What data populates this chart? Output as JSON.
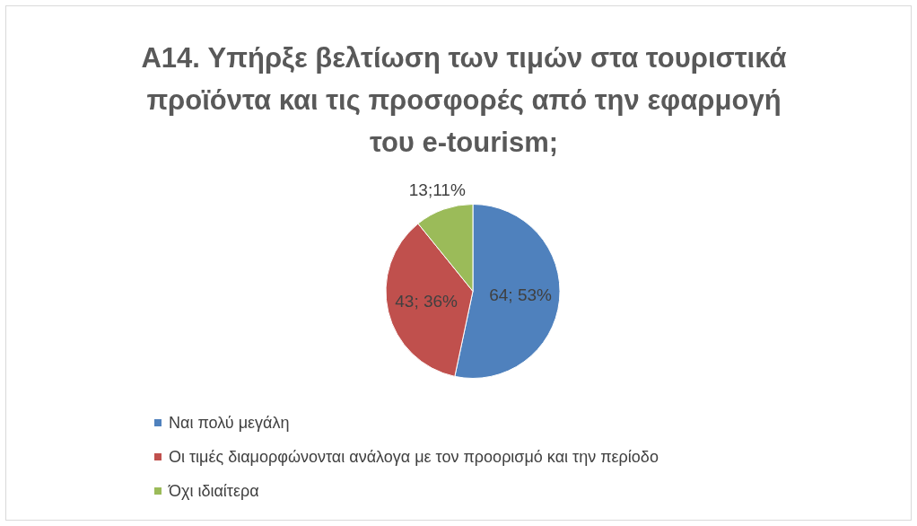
{
  "chart_data": {
    "type": "pie",
    "title": "A14. Υπήρξε βελτίωση των τιμών στα τουριστικά προϊόντα και τις προσφορές από την εφαρμογή του e-tourism;",
    "categories": [
      "Ναι πολύ μεγάλη",
      "Οι τιμές διαμορφώνονται ανάλογα με τον προορισμό και την περίοδο",
      "Όχι ιδιαίτερα"
    ],
    "values": [
      64,
      43,
      13
    ],
    "colors": [
      "#4f81bd",
      "#c0504d",
      "#9bbb59"
    ],
    "value_labels": [
      "64; 53%",
      "43; 36%",
      "13;11%"
    ],
    "legend": "bottom left"
  }
}
